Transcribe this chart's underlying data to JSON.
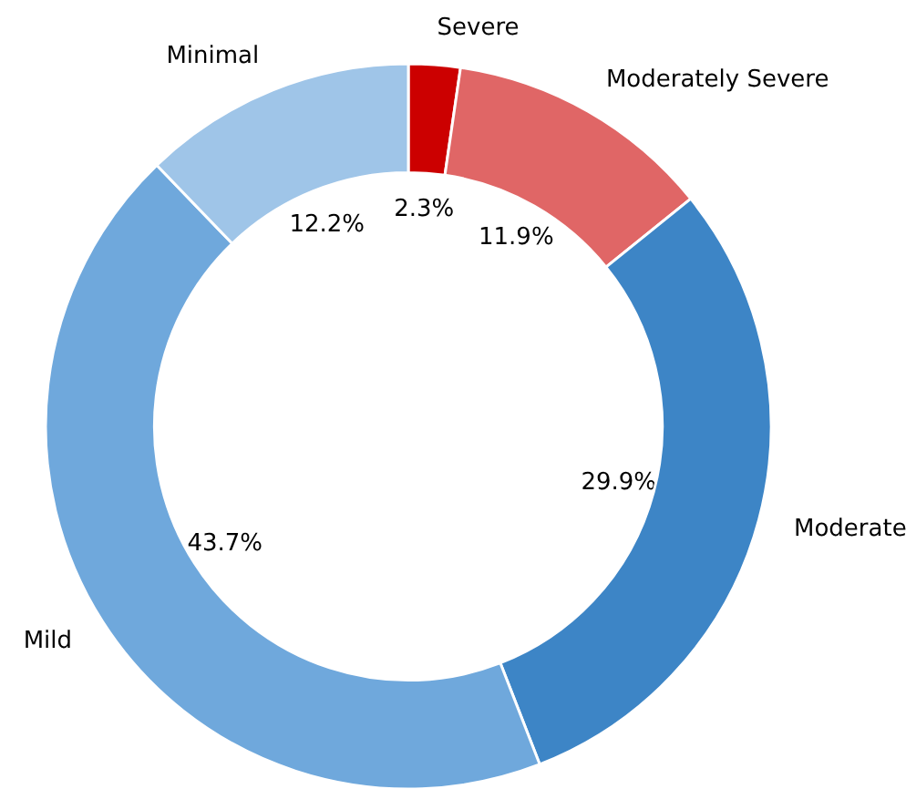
{
  "chart_data": {
    "type": "donut",
    "categories": [
      "Severe",
      "Moderately Severe",
      "Moderate",
      "Mild",
      "Minimal"
    ],
    "values": [
      2.3,
      11.9,
      29.9,
      43.7,
      12.2
    ],
    "colors": [
      "#cc0000",
      "#e06666",
      "#3d85c6",
      "#6fa8dc",
      "#9fc5e8"
    ],
    "value_labels": [
      "2.3%",
      "11.9%",
      "29.9%",
      "43.7%",
      "12.2%"
    ],
    "legend": false
  }
}
